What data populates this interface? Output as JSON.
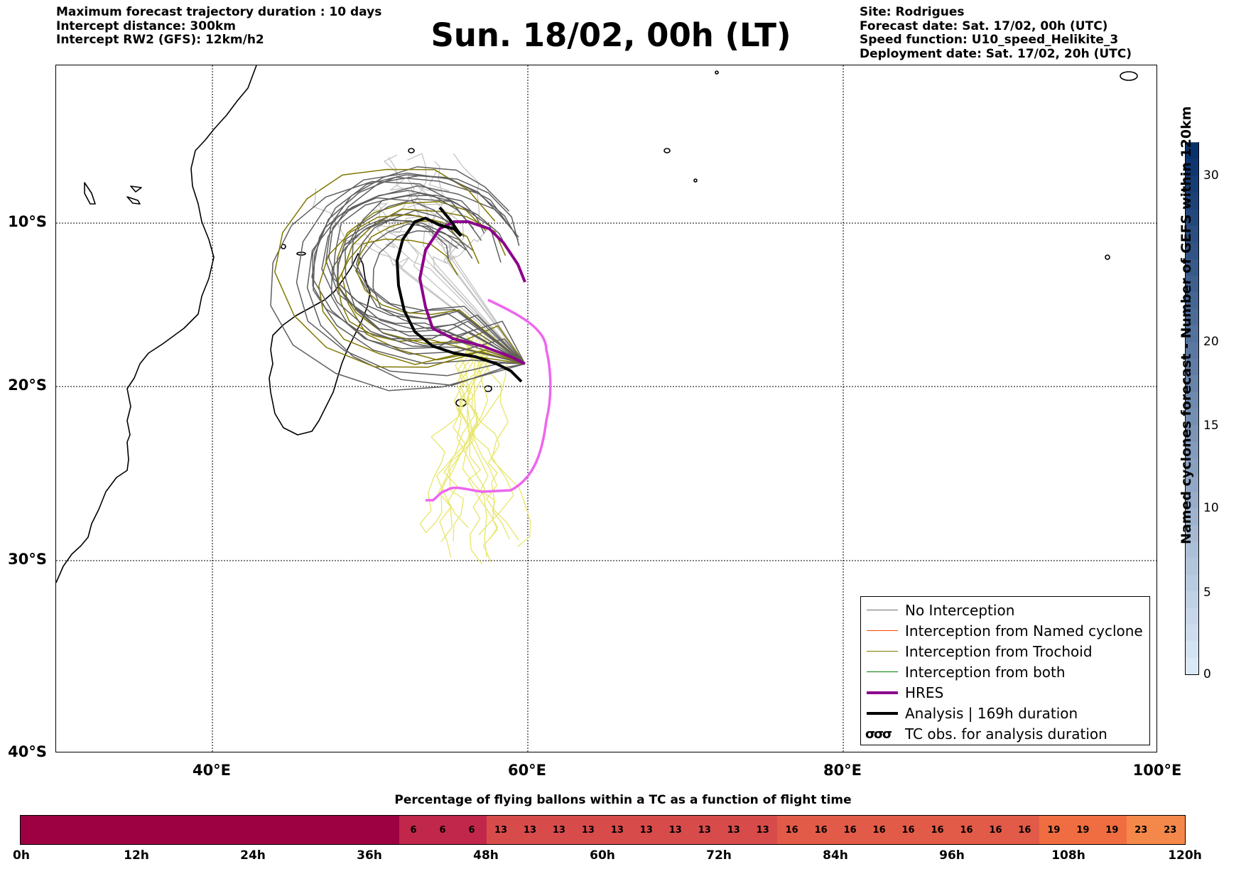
{
  "header": {
    "left": [
      "Maximum forecast trajectory duration : 10 days",
      "Intercept distance: 300km",
      "Intercept RW2 (GFS):  12km/h2"
    ],
    "right": [
      "Site: Rodrigues",
      "Forecast date: Sat. 17/02, 00h (UTC)",
      "Speed function: U10_speed_Helikite_3",
      "Deployment date: Sat. 17/02, 20h (UTC)"
    ],
    "title": "Sun. 18/02, 00h (LT)"
  },
  "map": {
    "lon_range": [
      30,
      100
    ],
    "lat_range": [
      -40,
      0
    ],
    "lat_labels": [
      "10°S",
      "20°S",
      "30°S",
      "40°S"
    ],
    "lon_labels": [
      "40°E",
      "60°E",
      "80°E",
      "100°E"
    ],
    "colors": {
      "no_interception": "#5f5f5f",
      "no_interception_light": "#c4c4c4",
      "named_cyclone": "#ff4500",
      "trochoid": "#807800",
      "trochoid_light": "#e8e66a",
      "both": "#008000",
      "hres": "#8b008b",
      "hres_light": "#ee66ee",
      "analysis": "#000000"
    }
  },
  "legend": {
    "items": [
      {
        "label": "No Interception",
        "color": "#707070",
        "width": 1.5
      },
      {
        "label": "Interception from Named cyclone",
        "color": "#ff4500",
        "width": 1.5
      },
      {
        "label": "Interception from Trochoid",
        "color": "#807800",
        "width": 1.5
      },
      {
        "label": "Interception from both",
        "color": "#008000",
        "width": 1.5
      },
      {
        "label": "HRES",
        "color": "#8b008b",
        "width": 4
      },
      {
        "label": "Analysis | 169h duration",
        "color": "#000000",
        "width": 4
      }
    ],
    "tc_obs_symbol": "σσσ",
    "tc_obs_label": "TC obs. for analysis duration"
  },
  "colorbar_right": {
    "label": "Named cyclones forecast - Number of GEFS within 120km",
    "ticks": [
      "0",
      "5",
      "10",
      "15",
      "20",
      "30"
    ],
    "tick_values": [
      0,
      5,
      10,
      15,
      20,
      30
    ],
    "max": 32,
    "color_low": "#dbe9f6",
    "color_high": "#08306b"
  },
  "bottom_bar": {
    "title": "Percentage of flying ballons within a TC as a function of flight time",
    "ticks": [
      "0h",
      "12h",
      "24h",
      "36h",
      "48h",
      "60h",
      "72h",
      "84h",
      "96h",
      "108h",
      "120h"
    ],
    "values": [
      0,
      0,
      0,
      0,
      0,
      0,
      0,
      0,
      0,
      0,
      0,
      0,
      0,
      6,
      6,
      6,
      13,
      13,
      13,
      13,
      13,
      13,
      13,
      13,
      13,
      13,
      16,
      16,
      16,
      16,
      16,
      16,
      16,
      16,
      16,
      19,
      19,
      19,
      23,
      23
    ]
  }
}
